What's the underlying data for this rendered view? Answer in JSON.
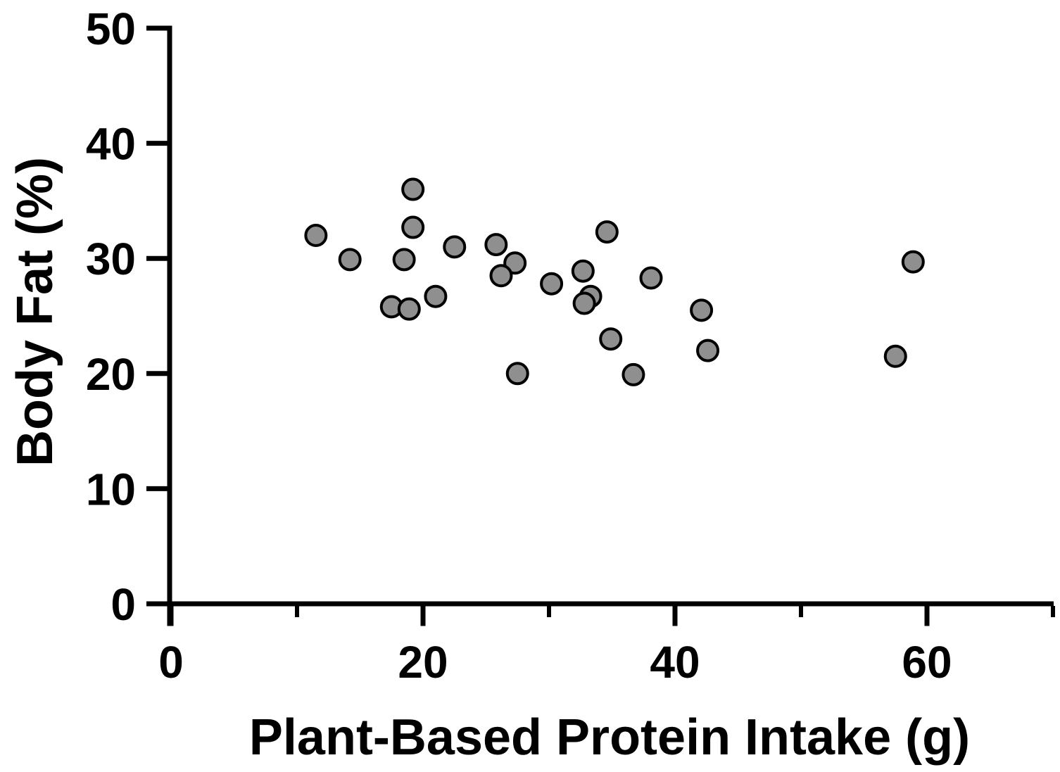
{
  "chart_data": {
    "type": "scatter",
    "title": "",
    "xlabel": "Plant-Based Protein Intake (g)",
    "ylabel": "Body Fat (%)",
    "xlim": [
      0,
      70
    ],
    "ylim": [
      0,
      50
    ],
    "x_major_ticks": [
      0,
      20,
      40,
      60
    ],
    "x_minor_ticks": [
      10,
      30,
      50,
      70
    ],
    "y_major_ticks": [
      0,
      10,
      20,
      30,
      40,
      50
    ],
    "x_tick_labels": [
      "0",
      "20",
      "40",
      "60"
    ],
    "y_tick_labels": [
      "0",
      "10",
      "20",
      "30",
      "40",
      "50"
    ],
    "grid": false,
    "legend": null,
    "axis_color": "#000000",
    "marker": {
      "shape": "circle",
      "fill": "#8f8f8f",
      "stroke": "#000000"
    },
    "points": [
      {
        "x": 11.5,
        "y": 32.0
      },
      {
        "x": 14.2,
        "y": 29.9
      },
      {
        "x": 17.5,
        "y": 25.8
      },
      {
        "x": 18.5,
        "y": 29.9
      },
      {
        "x": 18.9,
        "y": 25.6
      },
      {
        "x": 19.2,
        "y": 36.0
      },
      {
        "x": 19.2,
        "y": 32.7
      },
      {
        "x": 21.0,
        "y": 26.7
      },
      {
        "x": 22.5,
        "y": 31.0
      },
      {
        "x": 25.8,
        "y": 31.2
      },
      {
        "x": 27.3,
        "y": 29.6
      },
      {
        "x": 26.2,
        "y": 28.5
      },
      {
        "x": 27.5,
        "y": 20.0
      },
      {
        "x": 30.2,
        "y": 27.8
      },
      {
        "x": 32.7,
        "y": 28.9
      },
      {
        "x": 33.3,
        "y": 26.7
      },
      {
        "x": 32.8,
        "y": 26.1
      },
      {
        "x": 34.6,
        "y": 32.3
      },
      {
        "x": 34.9,
        "y": 23.0
      },
      {
        "x": 36.7,
        "y": 19.9
      },
      {
        "x": 38.1,
        "y": 28.3
      },
      {
        "x": 42.1,
        "y": 25.5
      },
      {
        "x": 42.6,
        "y": 22.0
      },
      {
        "x": 57.5,
        "y": 21.5
      },
      {
        "x": 58.9,
        "y": 29.7
      }
    ]
  }
}
